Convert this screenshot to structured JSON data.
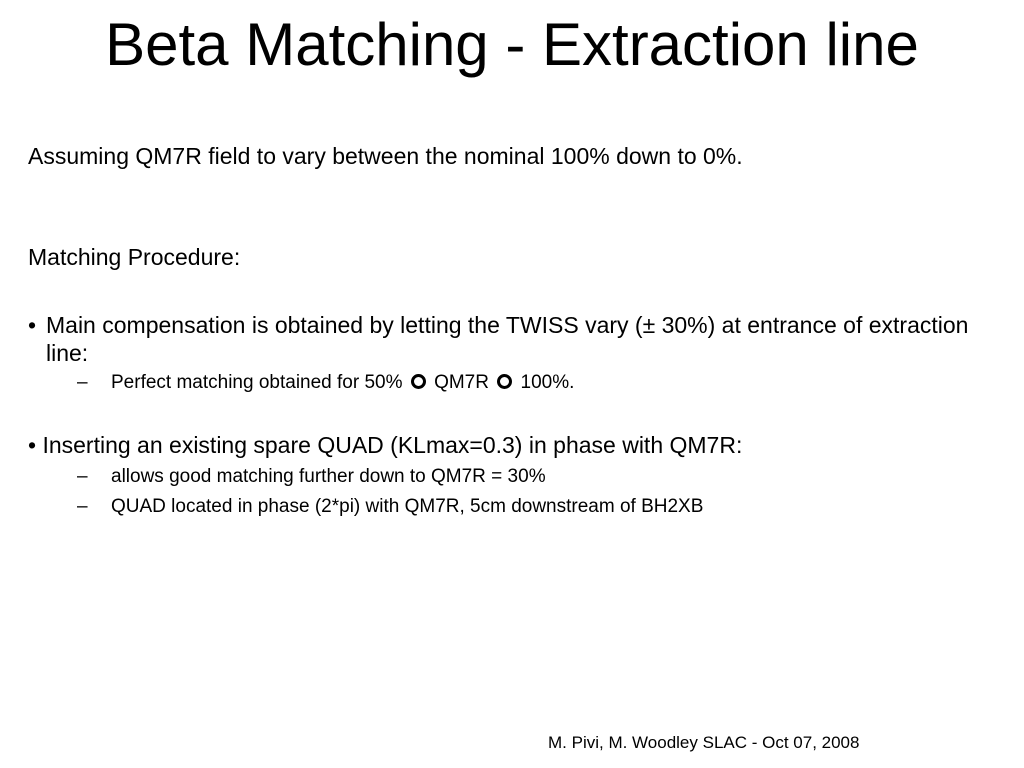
{
  "slide": {
    "title": "Beta Matching - Extraction line",
    "intro": "Assuming QM7R field to vary between the nominal 100% down to 0%.",
    "procedure_heading": "Matching Procedure:",
    "bullets": [
      {
        "marker": "•",
        "text": "Main compensation is obtained by letting the TWISS vary (± 30%) at entrance of extraction line:",
        "sub_items": [
          {
            "marker": "–",
            "text_parts": [
              "Perfect matching obtained for 50%",
              "QM7R",
              "100%."
            ],
            "icon": "ring-icon"
          }
        ]
      },
      {
        "text": "• Inserting an existing spare QUAD (KLmax=0.3) in phase with QM7R:",
        "sub_items": [
          {
            "marker": "–",
            "text": "allows good matching further down to QM7R = 30%"
          },
          {
            "marker": "–",
            "text": "QUAD located in phase (2*pi) with QM7R, 5cm downstream of BH2XB"
          }
        ]
      }
    ],
    "footer": "M. Pivi, M. Woodley SLAC - Oct 07, 2008"
  }
}
